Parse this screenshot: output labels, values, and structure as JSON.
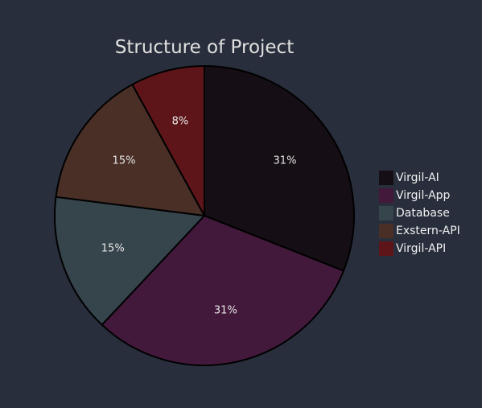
{
  "chart_data": {
    "type": "pie",
    "title": "Structure of Project",
    "slices": [
      {
        "label": "Virgil-AI",
        "value": 31,
        "display": "31%",
        "color": "#150e14"
      },
      {
        "label": "Virgil-App",
        "value": 31,
        "display": "31%",
        "color": "#43193b"
      },
      {
        "label": "Database",
        "value": 15,
        "display": "15%",
        "color": "#36444c"
      },
      {
        "label": "Exstern-API",
        "value": 15,
        "display": "15%",
        "color": "#492f26"
      },
      {
        "label": "Virgil-API",
        "value": 8,
        "display": "8%",
        "color": "#5d1519"
      }
    ],
    "start_angle_deg": 0,
    "direction": "clockwise",
    "legend_position": "right"
  },
  "colors": {
    "background": "#282e3b",
    "slice_border": "#000000"
  }
}
